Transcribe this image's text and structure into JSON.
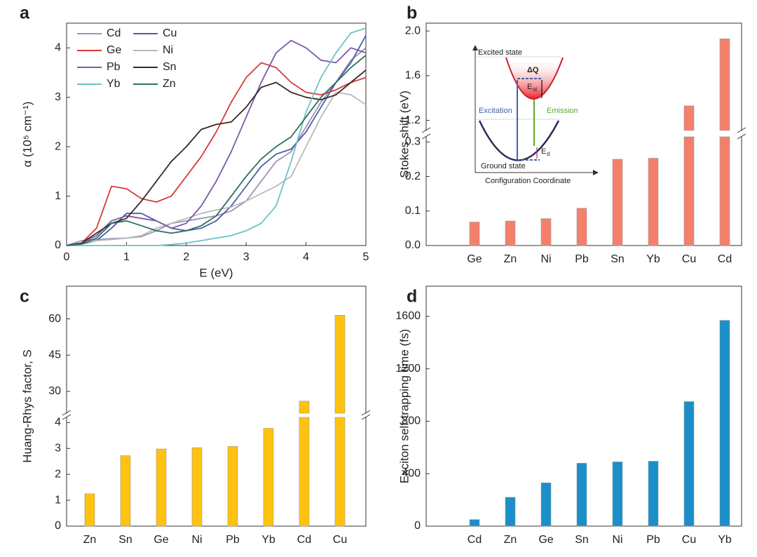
{
  "chart_data": [
    {
      "type": "line",
      "panel": "a",
      "x_label": "E (eV)",
      "y_label": "α (10⁵ cm⁻¹)",
      "xlim": [
        0,
        5
      ],
      "xticks": [
        0,
        1,
        2,
        3,
        4,
        5
      ],
      "ylim": [
        0,
        4.5
      ],
      "yticks": [
        0,
        1,
        2,
        3,
        4
      ],
      "legend": "upper left",
      "x": [
        0,
        0.25,
        0.5,
        0.75,
        1,
        1.25,
        1.5,
        1.75,
        2,
        2.25,
        2.5,
        2.75,
        3,
        3.25,
        3.5,
        3.75,
        4,
        4.25,
        4.5,
        4.75,
        5
      ],
      "series": [
        {
          "name": "Cd",
          "color": "#9d95b8",
          "values": [
            0,
            0.1,
            0.12,
            0.14,
            0.15,
            0.18,
            0.3,
            0.45,
            0.5,
            0.55,
            0.6,
            0.7,
            0.9,
            1.3,
            1.7,
            1.9,
            2.4,
            2.9,
            3.3,
            3.75,
            4.0
          ]
        },
        {
          "name": "Cu",
          "color": "#4a5fa8",
          "values": [
            0,
            0.03,
            0.1,
            0.35,
            0.65,
            0.65,
            0.5,
            0.35,
            0.3,
            0.35,
            0.5,
            0.8,
            1.2,
            1.6,
            1.85,
            1.95,
            2.3,
            2.8,
            3.3,
            3.7,
            4.25
          ]
        },
        {
          "name": "Ge",
          "color": "#d63a3a",
          "values": [
            0,
            0.05,
            0.35,
            1.2,
            1.15,
            0.95,
            0.88,
            1.0,
            1.4,
            1.8,
            2.3,
            2.9,
            3.4,
            3.7,
            3.6,
            3.3,
            3.1,
            3.05,
            3.15,
            3.3,
            3.4
          ]
        },
        {
          "name": "Ni",
          "color": "#b9b9b9",
          "values": [
            0,
            0.05,
            0.1,
            0.12,
            0.15,
            0.2,
            0.35,
            0.45,
            0.55,
            0.65,
            0.72,
            0.78,
            0.9,
            1.05,
            1.2,
            1.4,
            2.0,
            2.6,
            3.1,
            3.05,
            2.85
          ]
        },
        {
          "name": "Pb",
          "color": "#7b5aa6",
          "values": [
            0,
            0.05,
            0.2,
            0.5,
            0.6,
            0.55,
            0.5,
            0.35,
            0.45,
            0.8,
            1.3,
            1.9,
            2.6,
            3.3,
            3.9,
            4.15,
            4.0,
            3.75,
            3.7,
            4.0,
            3.9
          ]
        },
        {
          "name": "Sn",
          "color": "#3a2a2a",
          "values": [
            0,
            0.05,
            0.25,
            0.45,
            0.55,
            0.9,
            1.3,
            1.7,
            2.0,
            2.35,
            2.45,
            2.5,
            2.8,
            3.2,
            3.3,
            3.1,
            3.0,
            2.95,
            3.05,
            3.3,
            3.55
          ]
        },
        {
          "name": "Yb",
          "color": "#6cc3c3",
          "values": [
            0,
            0,
            0,
            0,
            0,
            0,
            0,
            0.02,
            0.05,
            0.1,
            0.15,
            0.2,
            0.3,
            0.45,
            0.8,
            1.7,
            2.7,
            3.4,
            3.9,
            4.3,
            4.4
          ]
        },
        {
          "name": "Zn",
          "color": "#2e6e5e",
          "values": [
            0,
            0.03,
            0.15,
            0.45,
            0.5,
            0.4,
            0.3,
            0.25,
            0.3,
            0.4,
            0.6,
            1.0,
            1.4,
            1.75,
            2.0,
            2.2,
            2.6,
            3.0,
            3.3,
            3.6,
            3.85
          ]
        }
      ]
    },
    {
      "type": "bar",
      "panel": "b",
      "y_label": "Stokes shift (eV)",
      "color": "#f4806c",
      "categories": [
        "Ge",
        "Zn",
        "Ni",
        "Pb",
        "Sn",
        "Yb",
        "Cu",
        "Cd"
      ],
      "values": [
        0.068,
        0.071,
        0.078,
        0.108,
        0.25,
        0.253,
        1.33,
        1.93
      ],
      "axis_break": {
        "lower": [
          0,
          0.315
        ],
        "upper": [
          1.11,
          2.07
        ]
      },
      "yticks": [
        {
          "value": 0,
          "label": "0.0"
        },
        0.1,
        0.2,
        0.3,
        1.2,
        1.6,
        {
          "value": 2,
          "label": "2.0"
        }
      ],
      "inset": {
        "excited": "Excited state",
        "dq": "ΔQ",
        "e": "E",
        "st": "st",
        "excitation": "Excitation",
        "emission": "Emission",
        "d": "d",
        "ground": "Ground state",
        "coord": "Configuration Coordinate"
      }
    },
    {
      "type": "bar",
      "panel": "c",
      "y_label": "Huang-Rhys factor, S",
      "color": "#ffc20e",
      "categories": [
        "Zn",
        "Sn",
        "Ge",
        "Ni",
        "Pb",
        "Yb",
        "Cd",
        "Cu"
      ],
      "values": [
        1.25,
        2.72,
        2.98,
        3.03,
        3.08,
        3.78,
        26,
        61.5
      ],
      "axis_break": {
        "lower": [
          0,
          4.2
        ],
        "upper": [
          21,
          73.5
        ]
      },
      "yticks": [
        0,
        1,
        2,
        3,
        4,
        30,
        45,
        60
      ]
    },
    {
      "type": "bar",
      "panel": "d",
      "y_label": "Exciton self-trapping time (fs)",
      "color": "#1b8fc9",
      "categories": [
        "Cd",
        "Zn",
        "Ge",
        "Sn",
        "Ni",
        "Pb",
        "Cu",
        "Yb"
      ],
      "values": [
        50,
        220,
        330,
        480,
        490,
        495,
        950,
        1570
      ],
      "ylim": [
        0,
        1830
      ],
      "yticks": [
        0,
        400,
        800,
        1200,
        1600
      ]
    }
  ]
}
